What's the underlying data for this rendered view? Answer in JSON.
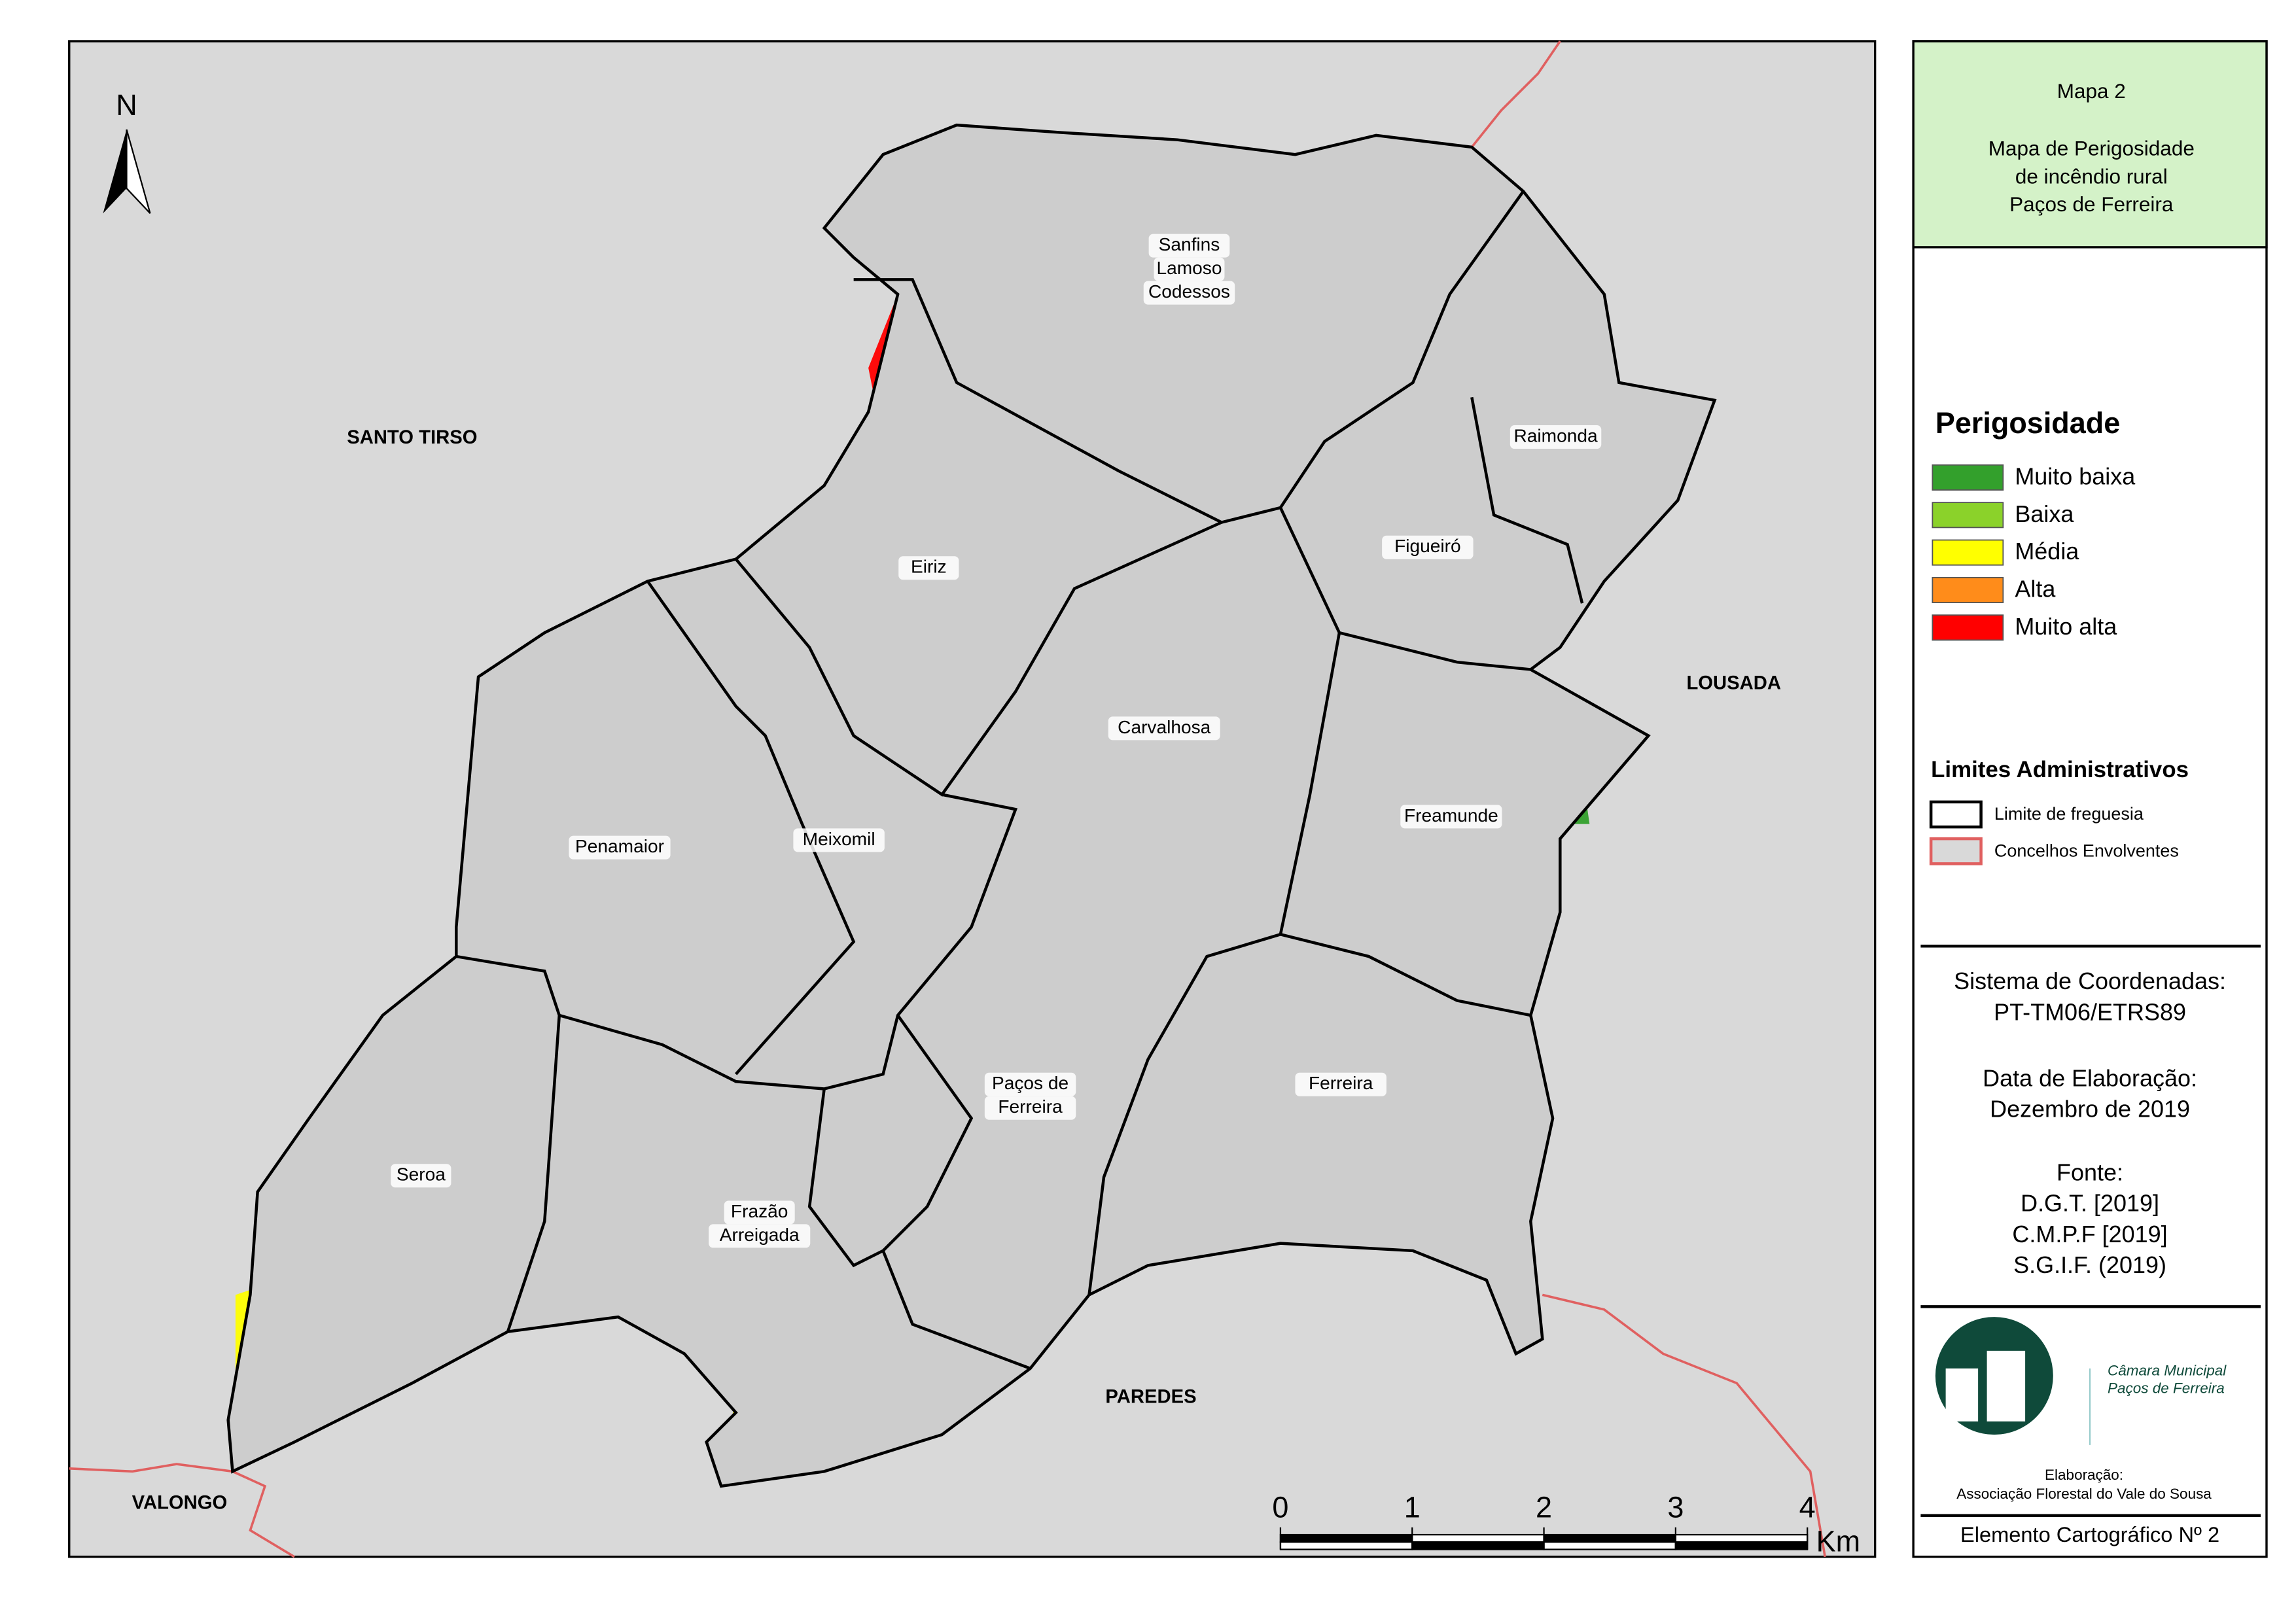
{
  "north_arrow": "N",
  "map": {
    "neighbors": [
      "SANTO TIRSO",
      "LOUSADA",
      "PAREDES",
      "VALONGO"
    ],
    "parishes": [
      {
        "lines": [
          "Sanfins",
          "Lamoso",
          "Codessos"
        ]
      },
      {
        "lines": [
          "Raimonda"
        ]
      },
      {
        "lines": [
          "Eiriz"
        ]
      },
      {
        "lines": [
          "Figueiró"
        ]
      },
      {
        "lines": [
          "Carvalhosa"
        ]
      },
      {
        "lines": [
          "Freamunde"
        ]
      },
      {
        "lines": [
          "Penamaior"
        ]
      },
      {
        "lines": [
          "Meixomil"
        ]
      },
      {
        "lines": [
          "Paços de",
          "Ferreira"
        ]
      },
      {
        "lines": [
          "Ferreira"
        ]
      },
      {
        "lines": [
          "Seroa"
        ]
      },
      {
        "lines": [
          "Frazão",
          "Arreigada"
        ]
      }
    ]
  },
  "title_panel": {
    "map_number": "Mapa 2",
    "title_lines": [
      "Mapa de Perigosidade",
      "de incêndio rural",
      "Paços de Ferreira"
    ]
  },
  "legend": {
    "title": "Perigosidade",
    "classes": [
      {
        "label": "Muito baixa",
        "color": "#33a02c"
      },
      {
        "label": "Baixa",
        "color": "#8bd22a"
      },
      {
        "label": "Média",
        "color": "#ffff00"
      },
      {
        "label": "Alta",
        "color": "#ff8c1a"
      },
      {
        "label": "Muito alta",
        "color": "#ff0000"
      }
    ]
  },
  "limits": {
    "title": "Limites Administrativos",
    "items": [
      "Limite de freguesia",
      "Concelhos Envolventes"
    ]
  },
  "info": {
    "lines": [
      "Sistema de Coordenadas:",
      "PT-TM06/ETRS89",
      "Data de Elaboração:",
      "Dezembro de 2019",
      "Fonte:",
      "D.G.T. [2019]",
      "C.M.P.F [2019]",
      "S.G.I.F. (2019)"
    ]
  },
  "logo": {
    "lines": [
      "Câmara Municipal",
      "Paços de Ferreira"
    ]
  },
  "credits": {
    "lines": [
      "Elaboração:",
      "Associação Florestal do Vale do Sousa"
    ]
  },
  "footer": "Elemento Cartográfico Nº 2",
  "scale_bar": {
    "ticks": [
      0,
      1,
      2,
      3,
      4
    ],
    "unit": "Km"
  }
}
